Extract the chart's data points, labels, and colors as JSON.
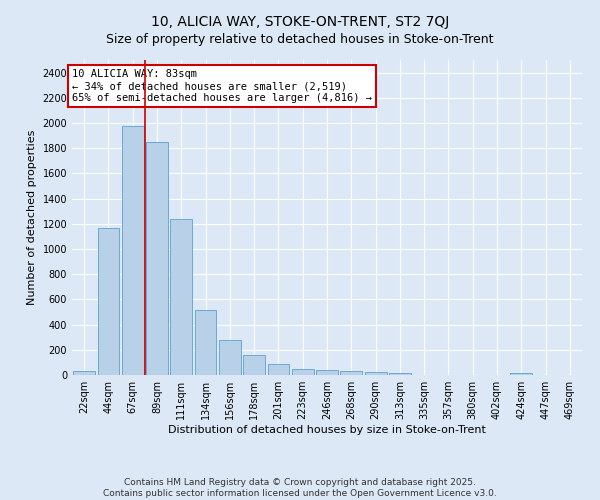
{
  "title": "10, ALICIA WAY, STOKE-ON-TRENT, ST2 7QJ",
  "subtitle": "Size of property relative to detached houses in Stoke-on-Trent",
  "xlabel": "Distribution of detached houses by size in Stoke-on-Trent",
  "ylabel": "Number of detached properties",
  "categories": [
    "22sqm",
    "44sqm",
    "67sqm",
    "89sqm",
    "111sqm",
    "134sqm",
    "156sqm",
    "178sqm",
    "201sqm",
    "223sqm",
    "246sqm",
    "268sqm",
    "290sqm",
    "313sqm",
    "335sqm",
    "357sqm",
    "380sqm",
    "402sqm",
    "424sqm",
    "447sqm",
    "469sqm"
  ],
  "values": [
    28,
    1170,
    1980,
    1850,
    1240,
    515,
    275,
    155,
    90,
    50,
    40,
    30,
    22,
    15,
    0,
    0,
    0,
    0,
    15,
    0,
    0
  ],
  "bar_color": "#b8d0e8",
  "bar_edge_color": "#6aaad4",
  "background_color": "#dce8f5",
  "grid_color": "#ffffff",
  "annotation_text_line1": "10 ALICIA WAY: 83sqm",
  "annotation_text_line2": "← 34% of detached houses are smaller (2,519)",
  "annotation_text_line3": "65% of semi-detached houses are larger (4,816) →",
  "annotation_box_facecolor": "#ffffff",
  "annotation_box_edgecolor": "#cc0000",
  "vline_color": "#cc0000",
  "vline_x_index": 2,
  "ylim": [
    0,
    2500
  ],
  "yticks": [
    0,
    200,
    400,
    600,
    800,
    1000,
    1200,
    1400,
    1600,
    1800,
    2000,
    2200,
    2400
  ],
  "footer_line1": "Contains HM Land Registry data © Crown copyright and database right 2025.",
  "footer_line2": "Contains public sector information licensed under the Open Government Licence v3.0.",
  "title_fontsize": 10,
  "subtitle_fontsize": 9,
  "axis_label_fontsize": 8,
  "tick_fontsize": 7,
  "annotation_fontsize": 7.5,
  "footer_fontsize": 6.5
}
